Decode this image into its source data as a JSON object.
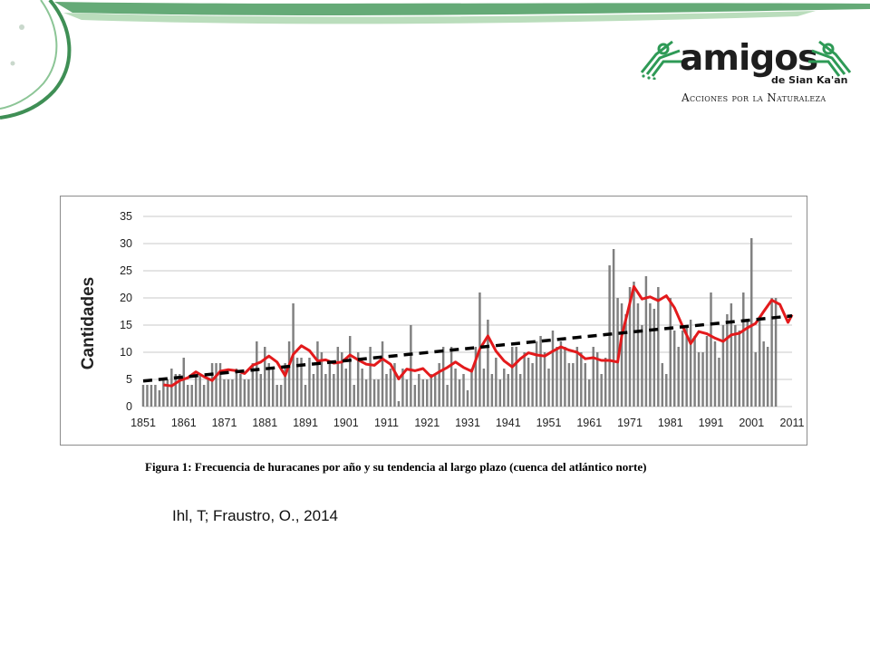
{
  "logo": {
    "brand": "amigos",
    "subtitle": "de Sian Ka'an",
    "tagline": "Acciones por la Naturaleza"
  },
  "colors": {
    "bars": "#808080",
    "moving_average": "#e31a1c",
    "trend": "#000000",
    "gridlines": "#c8c8c8",
    "logo_green": "#2e9a56",
    "decor_green": "#4a9b5f"
  },
  "figure": {
    "caption": "Figura 1: Frecuencia de huracanes por año y su tendencia al largo plazo (cuenca del atlántico norte)",
    "citation": "Ihl, T; Fraustro, O., 2014"
  },
  "chart_data": {
    "type": "bar",
    "ylabel": "Cantidades",
    "xlabel": "",
    "ylim": [
      0,
      35
    ],
    "yticks": [
      0,
      5,
      10,
      15,
      20,
      25,
      30,
      35
    ],
    "xticks": [
      1851,
      1861,
      1871,
      1881,
      1891,
      1901,
      1911,
      1921,
      1931,
      1941,
      1951,
      1961,
      1971,
      1981,
      1991,
      2001,
      2011
    ],
    "grid": true,
    "x_start": 1851,
    "x_end": 2011,
    "series": [
      {
        "kind": "bar",
        "values": [
          4,
          4,
          4,
          4,
          3,
          5,
          5,
          7,
          6,
          6,
          9,
          4,
          4,
          6,
          6,
          4,
          5,
          8,
          8,
          8,
          5,
          5,
          5,
          7,
          6,
          5,
          5,
          8,
          12,
          6,
          11,
          8,
          7,
          4,
          4,
          8,
          12,
          19,
          9,
          9,
          4,
          9,
          6,
          12,
          10,
          6,
          8,
          6,
          11,
          10,
          7,
          13,
          4,
          10,
          7,
          5,
          11,
          5,
          5,
          12,
          6,
          7,
          8,
          1,
          7,
          5,
          15,
          4,
          6,
          5,
          5,
          6,
          6,
          8,
          11,
          4,
          11,
          7,
          5,
          6,
          3,
          7,
          11,
          21,
          7,
          16,
          6,
          9,
          5,
          7,
          6,
          11,
          11,
          6,
          10,
          9,
          8,
          12,
          13,
          10,
          7,
          14,
          11,
          12,
          11,
          8,
          8,
          11,
          10,
          8,
          5,
          11,
          10,
          6,
          9,
          26,
          29,
          20,
          19,
          17,
          22,
          23,
          19,
          15,
          24,
          19,
          18,
          22,
          8,
          6,
          20,
          14,
          11,
          14,
          15,
          16,
          13,
          10,
          10,
          13,
          21,
          12,
          9,
          15,
          17,
          19,
          15,
          14,
          21,
          16,
          31,
          10,
          16,
          12,
          11,
          20,
          20
        ]
      },
      {
        "kind": "line",
        "name": "",
        "x": [
          1856,
          1858,
          1860,
          1862,
          1864,
          1866,
          1868,
          1870,
          1872,
          1874,
          1876,
          1878,
          1880,
          1882,
          1884,
          1886,
          1888,
          1890,
          1892,
          1894,
          1896,
          1898,
          1900,
          1902,
          1904,
          1906,
          1908,
          1910,
          1912,
          1914,
          1916,
          1918,
          1920,
          1922,
          1924,
          1926,
          1928,
          1930,
          1932,
          1934,
          1936,
          1938,
          1940,
          1942,
          1944,
          1946,
          1948,
          1950,
          1952,
          1954,
          1956,
          1958,
          1960,
          1962,
          1964,
          1966,
          1968,
          1969,
          1970,
          1972,
          1974,
          1976,
          1978,
          1980,
          1982,
          1984,
          1986,
          1988,
          1990,
          1992,
          1994,
          1996,
          1998,
          2000,
          2002,
          2004,
          2006,
          2008,
          2010,
          2011
        ],
        "y": [
          4.0,
          3.8,
          4.8,
          5.3,
          6.4,
          5.5,
          4.8,
          6.5,
          6.8,
          6.6,
          6.1,
          7.6,
          8.2,
          9.3,
          8.2,
          5.7,
          9.6,
          11.2,
          10.3,
          8.4,
          8.6,
          8.0,
          8.2,
          9.5,
          8.6,
          7.8,
          7.6,
          8.8,
          7.8,
          5.1,
          6.9,
          6.6,
          7.0,
          5.5,
          6.4,
          7.2,
          8.2,
          7.2,
          6.5,
          10.6,
          13.0,
          10.2,
          8.4,
          7.3,
          8.8,
          9.9,
          9.5,
          9.3,
          10.2,
          11.0,
          10.4,
          10.0,
          8.8,
          9.0,
          8.5,
          8.5,
          8.2,
          13.0,
          16.0,
          22.1,
          19.8,
          20.2,
          19.5,
          20.4,
          18.2,
          14.8,
          11.6,
          13.8,
          13.4,
          12.6,
          12.0,
          13.2,
          13.5,
          14.5,
          15.3,
          17.5,
          19.6,
          18.8,
          15.5,
          16.9
        ]
      },
      {
        "kind": "trend",
        "name": "",
        "x": [
          1851,
          2011
        ],
        "y": [
          4.7,
          16.7
        ]
      }
    ]
  }
}
